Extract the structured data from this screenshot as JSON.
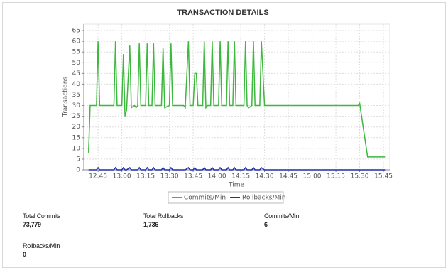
{
  "chart_data": {
    "type": "line",
    "title": "TRANSACTION DETAILS",
    "x_label": "Time",
    "y_label": "Transactions",
    "x": [
      "12:39",
      "12:40",
      "12:44",
      "12:45",
      "12:46",
      "12:55",
      "12:56",
      "12:57",
      "13:00",
      "13:01",
      "13:02",
      "13:03",
      "13:05",
      "13:06",
      "13:08",
      "13:09",
      "13:10",
      "13:11",
      "13:12",
      "13:15",
      "13:16",
      "13:17",
      "13:19",
      "13:20",
      "13:21",
      "13:25",
      "13:26",
      "13:27",
      "13:30",
      "13:31",
      "13:32",
      "13:39",
      "13:40",
      "13:42",
      "13:43",
      "13:45",
      "13:46",
      "13:47",
      "13:48",
      "13:51",
      "13:52",
      "13:53",
      "13:54",
      "13:56",
      "13:57",
      "13:58",
      "14:01",
      "14:02",
      "14:03",
      "14:06",
      "14:07",
      "14:08",
      "14:10",
      "14:11",
      "14:12",
      "14:17",
      "14:18",
      "14:19",
      "14:20",
      "14:22",
      "14:23",
      "14:24",
      "14:27",
      "14:28",
      "14:30",
      "15:29",
      "15:30",
      "15:35",
      "15:46"
    ],
    "series": [
      {
        "name": "Commits/Min",
        "color": "#3cb83c",
        "values": [
          8,
          30,
          30,
          60,
          30,
          30,
          60,
          30,
          30,
          54,
          25,
          28,
          58,
          29,
          30,
          29,
          30,
          59,
          30,
          30,
          59,
          30,
          30,
          59,
          30,
          30,
          57,
          29,
          30,
          59,
          30,
          30,
          29,
          60,
          30,
          30,
          45,
          45,
          30,
          30,
          60,
          29,
          30,
          30,
          60,
          30,
          30,
          60,
          30,
          30,
          60,
          30,
          30,
          60,
          30,
          30,
          60,
          30,
          29,
          30,
          60,
          30,
          30,
          60,
          30,
          30,
          31,
          6,
          6
        ]
      },
      {
        "name": "Rollbacks/Min",
        "color": "#1f2fa8",
        "values": [
          0,
          0,
          0,
          1,
          0,
          0,
          1,
          0,
          0,
          1,
          0,
          0,
          1,
          0,
          0,
          0,
          0,
          1,
          0,
          0,
          1,
          0,
          0,
          1,
          0,
          0,
          1,
          0,
          0,
          1,
          0,
          0,
          0,
          1,
          0,
          0,
          1,
          0,
          0,
          0,
          1,
          0,
          0,
          0,
          1,
          0,
          0,
          1,
          0,
          0,
          1,
          0,
          0,
          1,
          0,
          0,
          1,
          0,
          0,
          0,
          1,
          0,
          0,
          1,
          0,
          0,
          0,
          0,
          0
        ]
      }
    ],
    "xlim": [
      "12:36",
      "15:49"
    ],
    "xticks": [
      "12:45",
      "13:00",
      "13:15",
      "13:30",
      "13:45",
      "14:00",
      "14:15",
      "14:30",
      "14:45",
      "15:00",
      "15:15",
      "15:30",
      "15:45"
    ],
    "ylim": [
      0,
      68
    ],
    "yticks": [
      0,
      5,
      10,
      15,
      20,
      25,
      30,
      35,
      40,
      45,
      50,
      55,
      60,
      65
    ],
    "grid": true,
    "legend": "bottom"
  },
  "stats": [
    {
      "label": "Total Commits",
      "value": "73,779"
    },
    {
      "label": "Total Rollbacks",
      "value": "1,736"
    },
    {
      "label": "Commits/Min",
      "value": "6"
    },
    {
      "label": "Rollbacks/Min",
      "value": "0"
    }
  ]
}
